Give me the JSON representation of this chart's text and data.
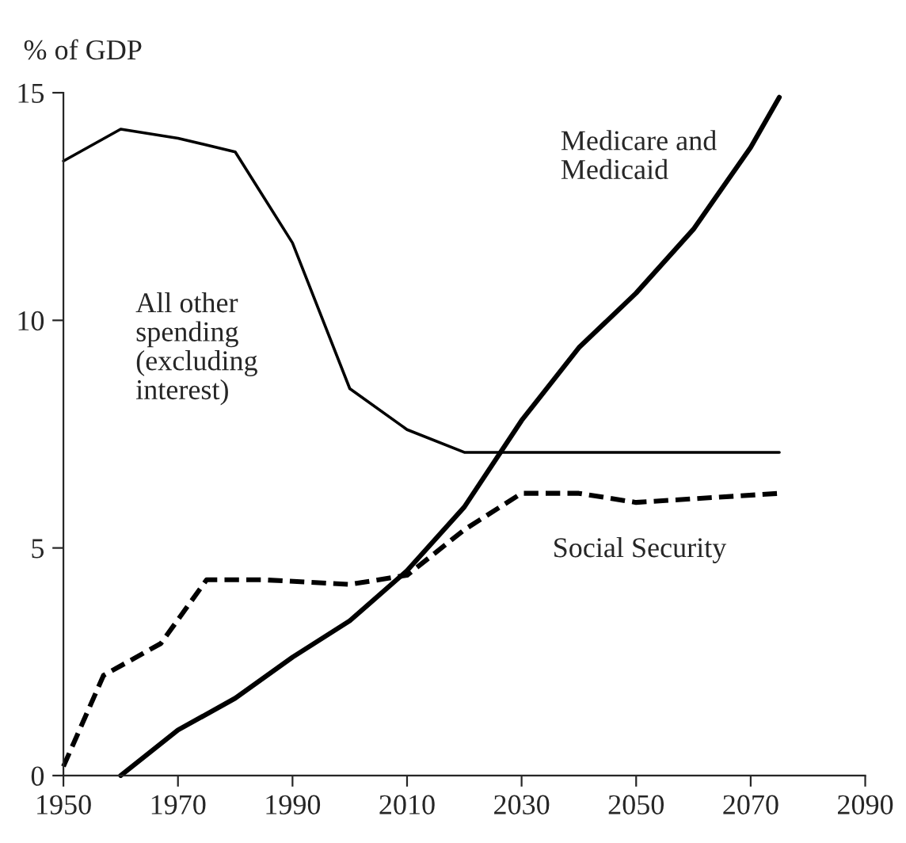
{
  "chart_data": {
    "type": "line",
    "ylabel": "% of GDP",
    "xlim": [
      1950,
      2090
    ],
    "xticks": [
      1950,
      1970,
      1990,
      2010,
      2030,
      2050,
      2070,
      2090
    ],
    "ylim": [
      0,
      15
    ],
    "yticks": [
      0,
      5,
      10,
      15
    ],
    "grid": false,
    "legend": false,
    "marker": "none",
    "series": [
      {
        "color": "#000000",
        "line_style": "solid",
        "x": [
          1950,
          1960,
          1970,
          1980,
          1990,
          2000,
          2010,
          2020,
          2030,
          2075
        ],
        "values": [
          13.5,
          14.2,
          14.0,
          13.7,
          11.7,
          8.5,
          7.6,
          7.1,
          7.1,
          7.1
        ]
      },
      {
        "color": "#000000",
        "line_style": "solid",
        "x": [
          1960,
          1970,
          1980,
          1990,
          2000,
          2010,
          2020,
          2030,
          2040,
          2050,
          2060,
          2070,
          2075
        ],
        "values": [
          0,
          1.0,
          1.7,
          2.6,
          3.4,
          4.5,
          5.9,
          7.8,
          9.4,
          10.6,
          12.0,
          13.8,
          14.9
        ]
      },
      {
        "color": "#000000",
        "line_style": "dashed",
        "x": [
          1950,
          1957,
          1967,
          1975,
          1985,
          2000,
          2010,
          2020,
          2030,
          2040,
          2050,
          2075
        ],
        "values": [
          0.2,
          2.2,
          2.9,
          4.3,
          4.3,
          4.2,
          4.4,
          5.4,
          6.2,
          6.2,
          6.0,
          6.2
        ]
      }
    ],
    "annotations": [
      "Medicare and\nMedicaid",
      "All other\nspending\n(excluding\ninterest)",
      "Social Security"
    ]
  }
}
